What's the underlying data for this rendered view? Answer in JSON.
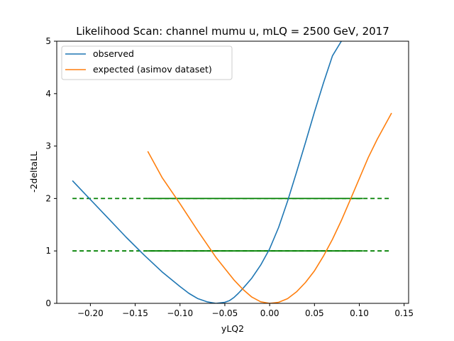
{
  "chart_data": {
    "type": "line",
    "title": "Likelihood Scan: channel mumu u, mLQ = 2500 GeV, 2017",
    "xlabel": "yLQ2",
    "ylabel": "-2deltaLL",
    "xlim": [
      -0.2375,
      0.155
    ],
    "ylim": [
      0,
      5
    ],
    "xticks": [
      -0.2,
      -0.15,
      -0.1,
      -0.05,
      0.0,
      0.05,
      0.1,
      0.15
    ],
    "xtick_labels": [
      "−0.20",
      "−0.15",
      "−0.10",
      "−0.05",
      "0.00",
      "0.05",
      "0.10",
      "0.15"
    ],
    "yticks": [
      0,
      1,
      2,
      3,
      4,
      5
    ],
    "ytick_labels": [
      "0",
      "1",
      "2",
      "3",
      "4",
      "5"
    ],
    "grid": false,
    "legend_position": "top-left",
    "series": [
      {
        "name": "observed",
        "color": "#1f77b4",
        "x": [
          -0.22,
          -0.2,
          -0.18,
          -0.16,
          -0.14,
          -0.12,
          -0.1,
          -0.09,
          -0.08,
          -0.07,
          -0.06,
          -0.05,
          -0.045,
          -0.04,
          -0.035,
          -0.03,
          -0.02,
          -0.01,
          0.0,
          0.01,
          0.02,
          0.03,
          0.04,
          0.05,
          0.06,
          0.07,
          0.08,
          0.084
        ],
        "y": [
          2.34,
          1.98,
          1.62,
          1.26,
          0.92,
          0.6,
          0.32,
          0.19,
          0.09,
          0.03,
          0.0,
          0.02,
          0.05,
          0.11,
          0.19,
          0.28,
          0.48,
          0.73,
          1.04,
          1.45,
          1.95,
          2.5,
          3.07,
          3.65,
          4.2,
          4.72,
          5.0,
          5.15
        ]
      },
      {
        "name": "expected (asimov dataset)",
        "color": "#ff7f0e",
        "x": [
          -0.136,
          -0.12,
          -0.1,
          -0.08,
          -0.06,
          -0.04,
          -0.03,
          -0.02,
          -0.01,
          0.0,
          0.01,
          0.02,
          0.03,
          0.04,
          0.05,
          0.06,
          0.07,
          0.08,
          0.09,
          0.1,
          0.11,
          0.12,
          0.136
        ],
        "y": [
          2.9,
          2.4,
          1.9,
          1.38,
          0.88,
          0.45,
          0.27,
          0.12,
          0.03,
          0.0,
          0.02,
          0.09,
          0.22,
          0.4,
          0.62,
          0.9,
          1.22,
          1.58,
          1.98,
          2.38,
          2.78,
          3.13,
          3.63
        ]
      }
    ],
    "reference_lines": [
      {
        "y": 1,
        "x_dashed": [
          -0.22,
          0.136
        ],
        "x_solid": [
          -0.136,
          0.104
        ],
        "color": "#008000"
      },
      {
        "y": 2,
        "x_dashed": [
          -0.22,
          0.136
        ],
        "x_solid": [
          -0.136,
          0.104
        ],
        "color": "#008000"
      }
    ]
  }
}
